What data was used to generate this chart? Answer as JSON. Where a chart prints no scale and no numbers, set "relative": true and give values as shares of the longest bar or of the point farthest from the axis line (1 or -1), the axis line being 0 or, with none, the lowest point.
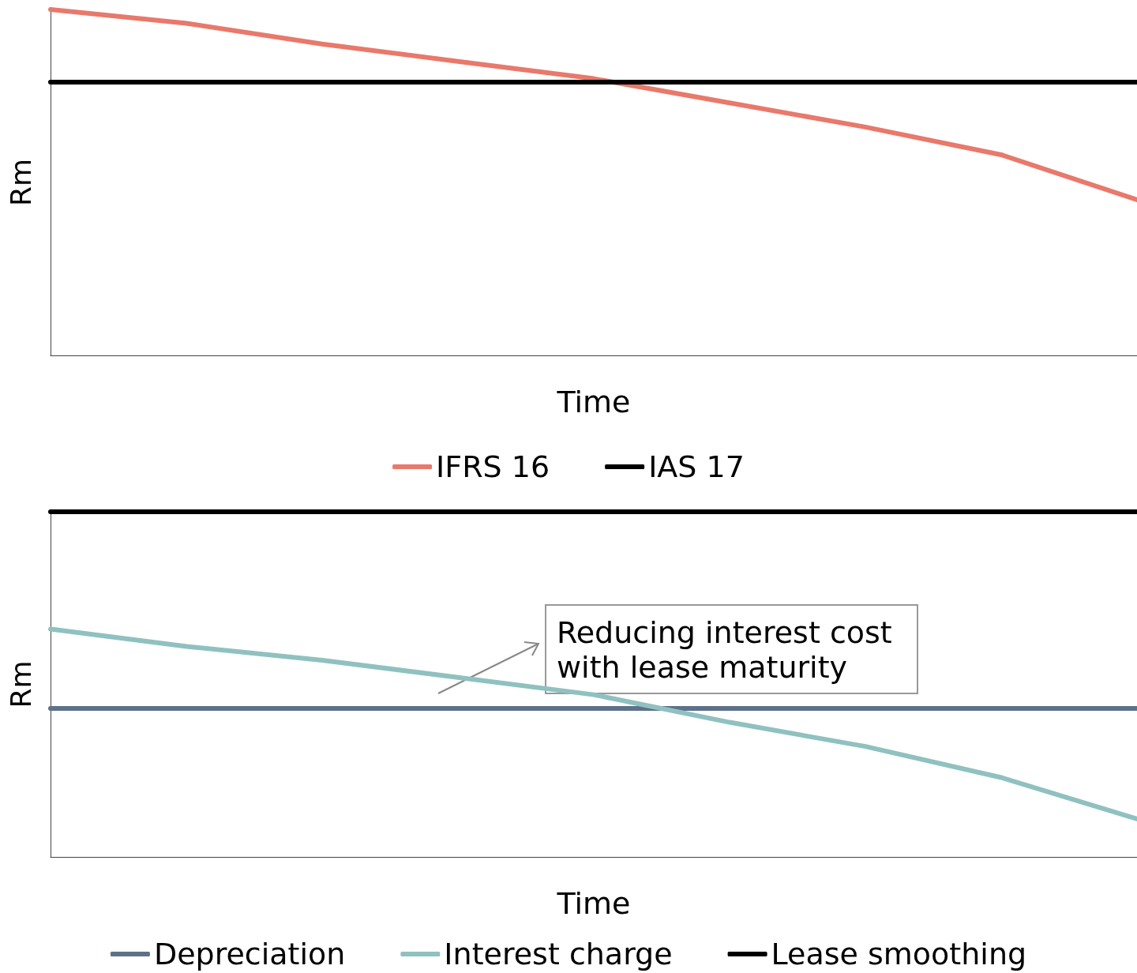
{
  "chart_data": [
    {
      "type": "line",
      "relative": true,
      "xlabel": "Time",
      "ylabel": "Rm",
      "categories": [
        null,
        null,
        null,
        null,
        null,
        null,
        null,
        null,
        null
      ],
      "series": [
        {
          "name": "IFRS 16",
          "color": "#e8796b",
          "values": [
            1,
            0.96,
            0.9,
            0.85,
            0.8,
            0.73,
            0.66,
            0.58,
            0.45
          ]
        },
        {
          "name": "IAS 17",
          "color": "#000000",
          "values": [
            0.79,
            0.79,
            0.79,
            0.79,
            0.79,
            0.79,
            0.79,
            0.79,
            0.79
          ]
        }
      ],
      "grid": false,
      "legend": "bottom",
      "marker": "none",
      "tick_labels": false
    },
    {
      "type": "line",
      "relative": true,
      "xlabel": "Time",
      "ylabel": "Rm",
      "categories": [
        null,
        null,
        null,
        null,
        null,
        null,
        null,
        null,
        null
      ],
      "series": [
        {
          "name": "Depreciation",
          "color": "#5d7189",
          "values": [
            0.43,
            0.43,
            0.43,
            0.43,
            0.43,
            0.43,
            0.43,
            0.43,
            0.43
          ]
        },
        {
          "name": "Interest charge",
          "color": "#8fc1c0",
          "values": [
            0.66,
            0.61,
            0.57,
            0.52,
            0.47,
            0.39,
            0.32,
            0.23,
            0.11
          ]
        },
        {
          "name": "Lease smoothing",
          "color": "#000000",
          "values": [
            1,
            1,
            1,
            1,
            1,
            1,
            1,
            1,
            1
          ]
        }
      ],
      "annotations": [
        "Reducing interest cost\nwith lease maturity"
      ],
      "grid": false,
      "legend": "bottom",
      "marker": "none",
      "tick_labels": false
    }
  ]
}
